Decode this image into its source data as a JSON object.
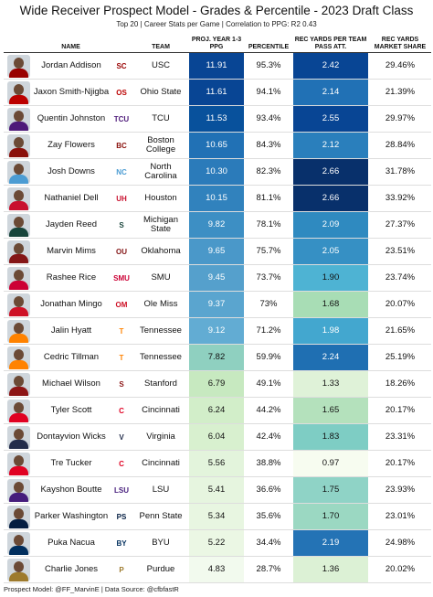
{
  "header": {
    "title": "Wide Receiver Prospect Model - Grades & Percentile - 2023 Draft Class",
    "subtitle": "Top 20 | Career Stats per Game | Correlation to PPG: R2 0.43"
  },
  "columns": {
    "name": "NAME",
    "team": "TEAM",
    "proj": "PROJ. YEAR 1-3 PPG",
    "percentile": "PERCENTILE",
    "rec_yards": "REC YARDS PER TEAM PASS ATT.",
    "market_share": "REC YARDS MARKET SHARE"
  },
  "rows": [
    {
      "name": "Jordan Addison",
      "team": "USC",
      "proj": "11.91",
      "percentile": "95.3%",
      "rec_yards": "2.42",
      "market_share": "29.46%",
      "team_logo": "SC",
      "logo_color": "#990000",
      "proj_color": "#084594",
      "rec_color": "#084594"
    },
    {
      "name": "Jaxon Smith-Njigba",
      "team": "Ohio State",
      "proj": "11.61",
      "percentile": "94.1%",
      "rec_yards": "2.14",
      "market_share": "21.39%",
      "team_logo": "OS",
      "logo_color": "#bb0000",
      "proj_color": "#084594",
      "rec_color": "#2171b5"
    },
    {
      "name": "Quentin Johnston",
      "team": "TCU",
      "proj": "11.53",
      "percentile": "93.4%",
      "rec_yards": "2.55",
      "market_share": "29.97%",
      "team_logo": "TCU",
      "logo_color": "#4d1979",
      "proj_color": "#08519c",
      "rec_color": "#084594"
    },
    {
      "name": "Zay Flowers",
      "team": "Boston College",
      "proj": "10.65",
      "percentile": "84.3%",
      "rec_yards": "2.12",
      "market_share": "28.84%",
      "team_logo": "BC",
      "logo_color": "#8a100b",
      "proj_color": "#2171b5",
      "rec_color": "#2a7fbc"
    },
    {
      "name": "Josh Downs",
      "team": "North Carolina",
      "proj": "10.30",
      "percentile": "82.3%",
      "rec_yards": "2.66",
      "market_share": "31.78%",
      "team_logo": "NC",
      "logo_color": "#4b9cd3",
      "proj_color": "#2b7bba",
      "rec_color": "#08306b"
    },
    {
      "name": "Nathaniel Dell",
      "team": "Houston",
      "proj": "10.15",
      "percentile": "81.1%",
      "rec_yards": "2.66",
      "market_share": "33.92%",
      "team_logo": "UH",
      "logo_color": "#c8102e",
      "proj_color": "#3182bd",
      "rec_color": "#08306b"
    },
    {
      "name": "Jayden Reed",
      "team": "Michigan State",
      "proj": "9.82",
      "percentile": "78.1%",
      "rec_yards": "2.09",
      "market_share": "27.37%",
      "team_logo": "S",
      "logo_color": "#18453b",
      "proj_color": "#3d8fc4",
      "rec_color": "#2f8ac0"
    },
    {
      "name": "Marvin Mims",
      "team": "Oklahoma",
      "proj": "9.65",
      "percentile": "75.7%",
      "rec_yards": "2.05",
      "market_share": "23.51%",
      "team_logo": "OU",
      "logo_color": "#841617",
      "proj_color": "#4a98c9",
      "rec_color": "#3690c4"
    },
    {
      "name": "Rashee Rice",
      "team": "SMU",
      "proj": "9.45",
      "percentile": "73.7%",
      "rec_yards": "1.90",
      "market_share": "23.74%",
      "team_logo": "SMU",
      "logo_color": "#cc0035",
      "proj_color": "#55a0cc",
      "rec_color": "#4eb3d3"
    },
    {
      "name": "Jonathan Mingo",
      "team": "Ole Miss",
      "proj": "9.37",
      "percentile": "73%",
      "rec_yards": "1.68",
      "market_share": "20.07%",
      "team_logo": "OM",
      "logo_color": "#ce1126",
      "proj_color": "#5aa5cf",
      "rec_color": "#a8ddb5"
    },
    {
      "name": "Jalin Hyatt",
      "team": "Tennessee",
      "proj": "9.12",
      "percentile": "71.2%",
      "rec_yards": "1.98",
      "market_share": "21.65%",
      "team_logo": "T",
      "logo_color": "#ff8200",
      "proj_color": "#62acd3",
      "rec_color": "#43a7cf"
    },
    {
      "name": "Cedric Tillman",
      "team": "Tennessee",
      "proj": "7.82",
      "percentile": "59.9%",
      "rec_yards": "2.24",
      "market_share": "25.19%",
      "team_logo": "T",
      "logo_color": "#ff8200",
      "proj_color": "#8fd0c0",
      "rec_color": "#1f6fb2"
    },
    {
      "name": "Michael Wilson",
      "team": "Stanford",
      "proj": "6.79",
      "percentile": "49.1%",
      "rec_yards": "1.33",
      "market_share": "18.26%",
      "team_logo": "S",
      "logo_color": "#8c1515",
      "proj_color": "#c7e9c0",
      "rec_color": "#dff2d8"
    },
    {
      "name": "Tyler Scott",
      "team": "Cincinnati",
      "proj": "6.24",
      "percentile": "44.2%",
      "rec_yards": "1.65",
      "market_share": "20.17%",
      "team_logo": "C",
      "logo_color": "#e00122",
      "proj_color": "#d2eec9",
      "rec_color": "#b4e1bc"
    },
    {
      "name": "Dontayvion Wicks",
      "team": "Virginia",
      "proj": "6.04",
      "percentile": "42.4%",
      "rec_yards": "1.83",
      "market_share": "23.31%",
      "team_logo": "V",
      "logo_color": "#232d4b",
      "proj_color": "#d8f0cf",
      "rec_color": "#7ecdc4"
    },
    {
      "name": "Tre Tucker",
      "team": "Cincinnati",
      "proj": "5.56",
      "percentile": "38.8%",
      "rec_yards": "0.97",
      "market_share": "20.17%",
      "team_logo": "C",
      "logo_color": "#e00122",
      "proj_color": "#e3f4dc",
      "rec_color": "#f7fcf0"
    },
    {
      "name": "Kayshon Boutte",
      "team": "LSU",
      "proj": "5.41",
      "percentile": "36.6%",
      "rec_yards": "1.75",
      "market_share": "23.93%",
      "team_logo": "LSU",
      "logo_color": "#461d7c",
      "proj_color": "#e6f5df",
      "rec_color": "#8fd3c6"
    },
    {
      "name": "Parker Washington",
      "team": "Penn State",
      "proj": "5.34",
      "percentile": "35.6%",
      "rec_yards": "1.70",
      "market_share": "23.01%",
      "team_logo": "PS",
      "logo_color": "#041e42",
      "proj_color": "#e8f6e1",
      "rec_color": "#9bd8c2"
    },
    {
      "name": "Puka Nacua",
      "team": "BYU",
      "proj": "5.22",
      "percentile": "34.4%",
      "rec_yards": "2.19",
      "market_share": "24.98%",
      "team_logo": "BY",
      "logo_color": "#002e5d",
      "proj_color": "#ebf7e4",
      "rec_color": "#2473b5"
    },
    {
      "name": "Charlie Jones",
      "team": "Purdue",
      "proj": "4.83",
      "percentile": "28.7%",
      "rec_yards": "1.36",
      "market_share": "20.02%",
      "team_logo": "P",
      "logo_color": "#9d7a2d",
      "proj_color": "#f2faee",
      "rec_color": "#dcf1d5"
    }
  ],
  "footer": "Prospect Model: @FF_MarvinE | Data Source: @cfbfastR"
}
